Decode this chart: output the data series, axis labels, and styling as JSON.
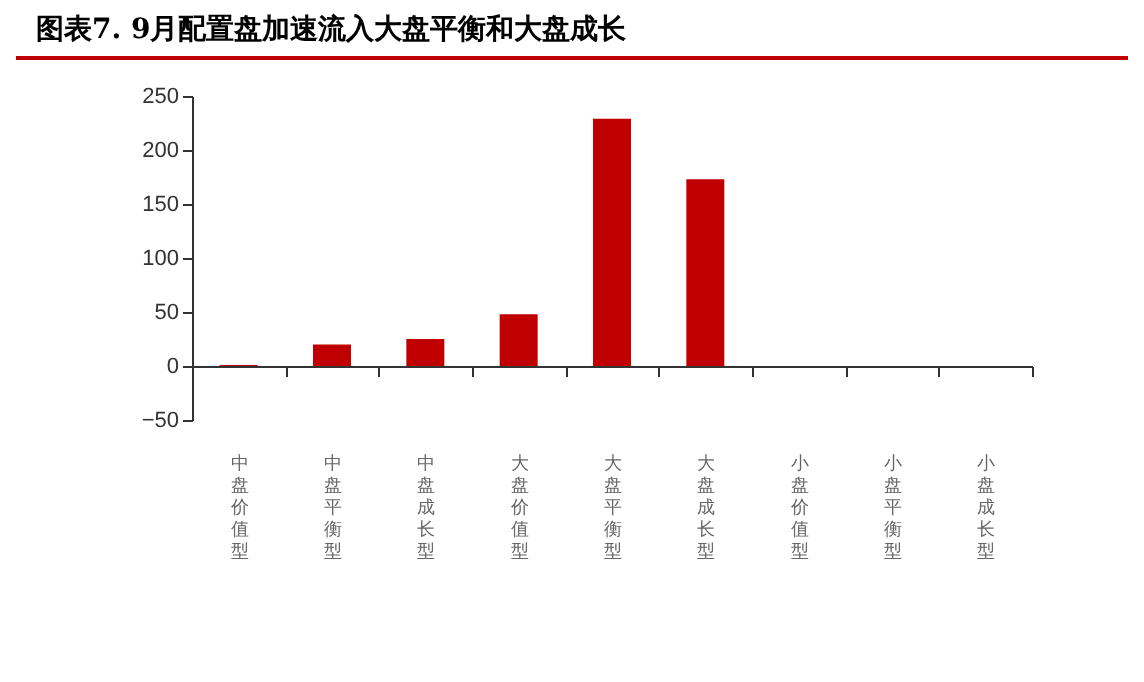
{
  "chart_data": {
    "type": "bar",
    "title": "图表7.  9月配置盘加速流入大盘平衡和大盘成长",
    "categories": [
      "中盘价值型",
      "中盘平衡型",
      "中盘成长型",
      "大盘价值型",
      "大盘平衡型",
      "大盘成长型",
      "小盘价值型",
      "小盘平衡型",
      "小盘成长型"
    ],
    "values": [
      1,
      20,
      25,
      48,
      229,
      173,
      0,
      0,
      0
    ],
    "color": "#c00000",
    "ylim": [
      -50,
      250
    ],
    "yticks": [
      -50,
      0,
      50,
      100,
      150,
      200,
      250
    ]
  }
}
